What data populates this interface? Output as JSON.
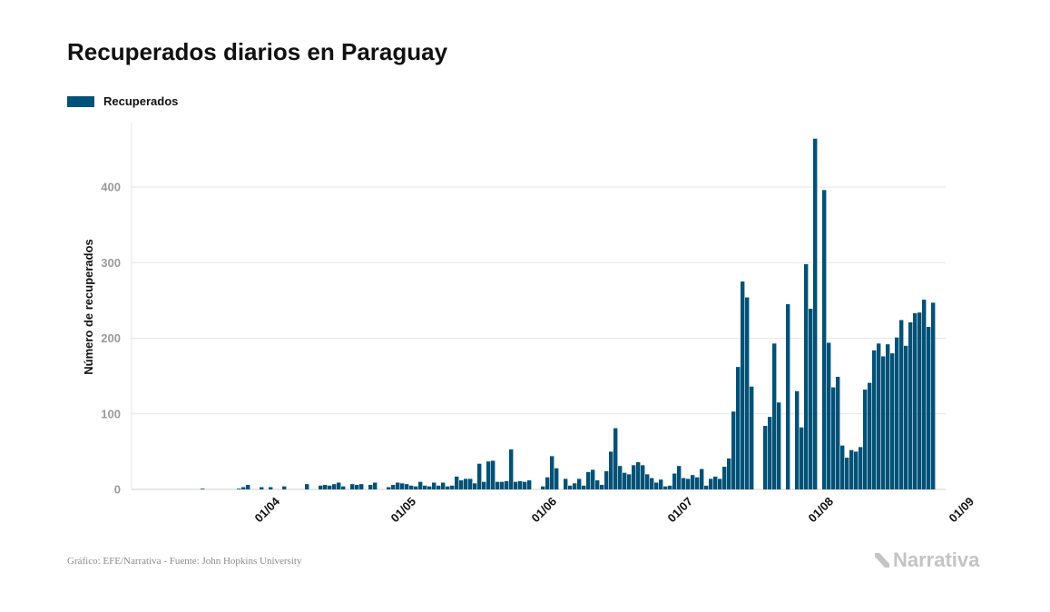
{
  "title": "Recuperados diarios en Paraguay",
  "source": "Gráfico: EFE/Narrativa - Fuente: John Hopkins University",
  "brand": {
    "name": "Narrativa",
    "icon": "narrativa-n-logo-icon"
  },
  "colors": {
    "bar": "#005177",
    "grid": "#e6e6e6",
    "text": "#111111",
    "tick": "#9a9a9a",
    "brand": "#c4c4c4"
  },
  "chart_data": {
    "type": "bar",
    "title": "Recuperados diarios en Paraguay",
    "xlabel": "",
    "ylabel": "Número de recuperados",
    "ylim": [
      0,
      470
    ],
    "yticks": [
      0,
      100,
      200,
      300,
      400
    ],
    "grid": true,
    "legend_position": "top-left",
    "x_tick_labels": [
      {
        "label": "01/04",
        "date": "2020-04-01"
      },
      {
        "label": "01/05",
        "date": "2020-05-01"
      },
      {
        "label": "01/06",
        "date": "2020-06-01"
      },
      {
        "label": "01/07",
        "date": "2020-07-01"
      },
      {
        "label": "01/08",
        "date": "2020-08-01"
      },
      {
        "label": "01/09",
        "date": "2020-09-01"
      }
    ],
    "series": [
      {
        "name": "Recuperados",
        "start_date": "2020-03-07",
        "values": [
          0,
          0,
          0,
          0,
          0,
          0,
          0,
          0,
          0,
          1,
          0,
          0,
          0,
          0,
          0,
          0,
          0,
          1,
          3,
          6,
          0,
          0,
          3,
          0,
          3,
          0,
          0,
          4,
          0,
          0,
          0,
          0,
          7,
          0,
          0,
          5,
          6,
          5,
          7,
          9,
          4,
          0,
          7,
          6,
          7,
          0,
          6,
          9,
          0,
          0,
          3,
          6,
          9,
          8,
          7,
          5,
          4,
          10,
          5,
          4,
          9,
          5,
          9,
          4,
          5,
          17,
          12,
          14,
          14,
          8,
          34,
          10,
          37,
          38,
          10,
          10,
          11,
          53,
          10,
          11,
          10,
          12,
          0,
          0,
          4,
          16,
          44,
          28,
          0,
          14,
          5,
          8,
          14,
          5,
          23,
          26,
          12,
          6,
          24,
          50,
          81,
          31,
          22,
          20,
          32,
          36,
          32,
          20,
          15,
          9,
          13,
          4,
          5,
          21,
          31,
          15,
          14,
          19,
          16,
          27,
          5,
          14,
          17,
          14,
          30,
          41,
          103,
          162,
          275,
          254,
          136,
          0,
          0,
          84,
          96,
          193,
          115,
          0,
          245,
          0,
          130,
          82,
          298,
          239,
          464,
          0,
          396,
          194,
          135,
          149,
          58,
          42,
          52,
          50,
          56,
          132,
          141,
          184,
          193,
          176,
          192,
          180,
          201,
          224,
          190,
          221,
          233,
          234,
          251,
          215,
          247
        ]
      }
    ]
  }
}
